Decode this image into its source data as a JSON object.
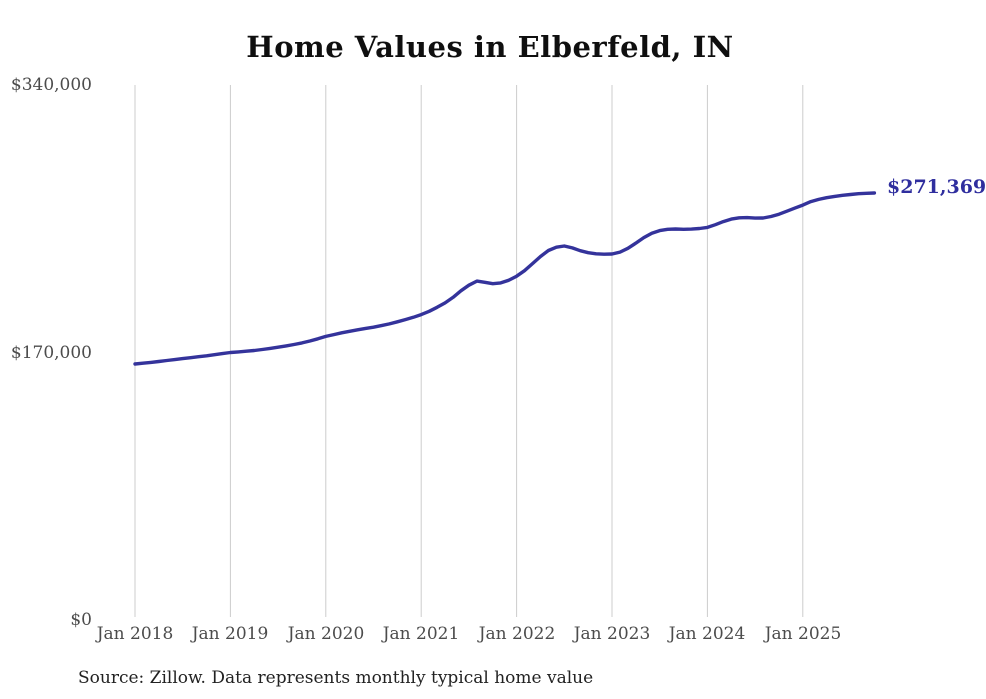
{
  "title": "Home Values in Elberfeld, IN",
  "source_note": "Source: Zillow. Data represents monthly typical home value",
  "labels": {
    "end_value": "$271,369"
  },
  "colors": {
    "background": "#ffffff",
    "line": "#34339b",
    "gridline": "#cccccc",
    "axis_text": "#4c4c4c",
    "title_text": "#0f0f0f",
    "end_label_text": "#2f2e9e",
    "source_text": "#222222"
  },
  "chart_data": {
    "type": "line",
    "title": "Home Values in Elberfeld, IN",
    "xlabel": "",
    "ylabel": "",
    "grid": "vertical-only",
    "legend": "none",
    "ylim": [
      0,
      340000
    ],
    "y_axis": {
      "ticks": [
        {
          "value": 340000,
          "label": "$340,000"
        },
        {
          "value": 170000,
          "label": "$170,000"
        },
        {
          "value": 0,
          "label": "$0"
        }
      ]
    },
    "x_axis": {
      "tick_unit": "year",
      "ticks": [
        "Jan 2018",
        "Jan 2019",
        "Jan 2020",
        "Jan 2021",
        "Jan 2022",
        "Jan 2023",
        "Jan 2024",
        "Jan 2025"
      ]
    },
    "series": [
      {
        "name": "Monthly typical home value",
        "start_month": "2018-01",
        "end_month": "2025-10",
        "end_value": 271369,
        "values": [
          162700,
          163200,
          163700,
          164300,
          164900,
          165500,
          166100,
          166700,
          167300,
          167900,
          168600,
          169300,
          170000,
          170400,
          170800,
          171300,
          171900,
          172600,
          173400,
          174200,
          175100,
          176100,
          177300,
          178700,
          180200,
          181400,
          182500,
          183500,
          184400,
          185300,
          186100,
          187100,
          188200,
          189500,
          190900,
          192400,
          194100,
          196200,
          198700,
          201500,
          205000,
          209200,
          212800,
          215400,
          214600,
          213700,
          214200,
          215900,
          218500,
          222000,
          226500,
          231000,
          234800,
          236900,
          237700,
          236500,
          234700,
          233400,
          232700,
          232500,
          232600,
          233800,
          236200,
          239500,
          243000,
          245800,
          247500,
          248300,
          248500,
          248300,
          248400,
          248800,
          249500,
          251200,
          253200,
          254800,
          255600,
          255700,
          255400,
          255500,
          256400,
          257900,
          259800,
          261800,
          263700,
          265900,
          267300,
          268400,
          269200,
          269900,
          270400,
          270900,
          271200,
          271369
        ]
      }
    ]
  }
}
